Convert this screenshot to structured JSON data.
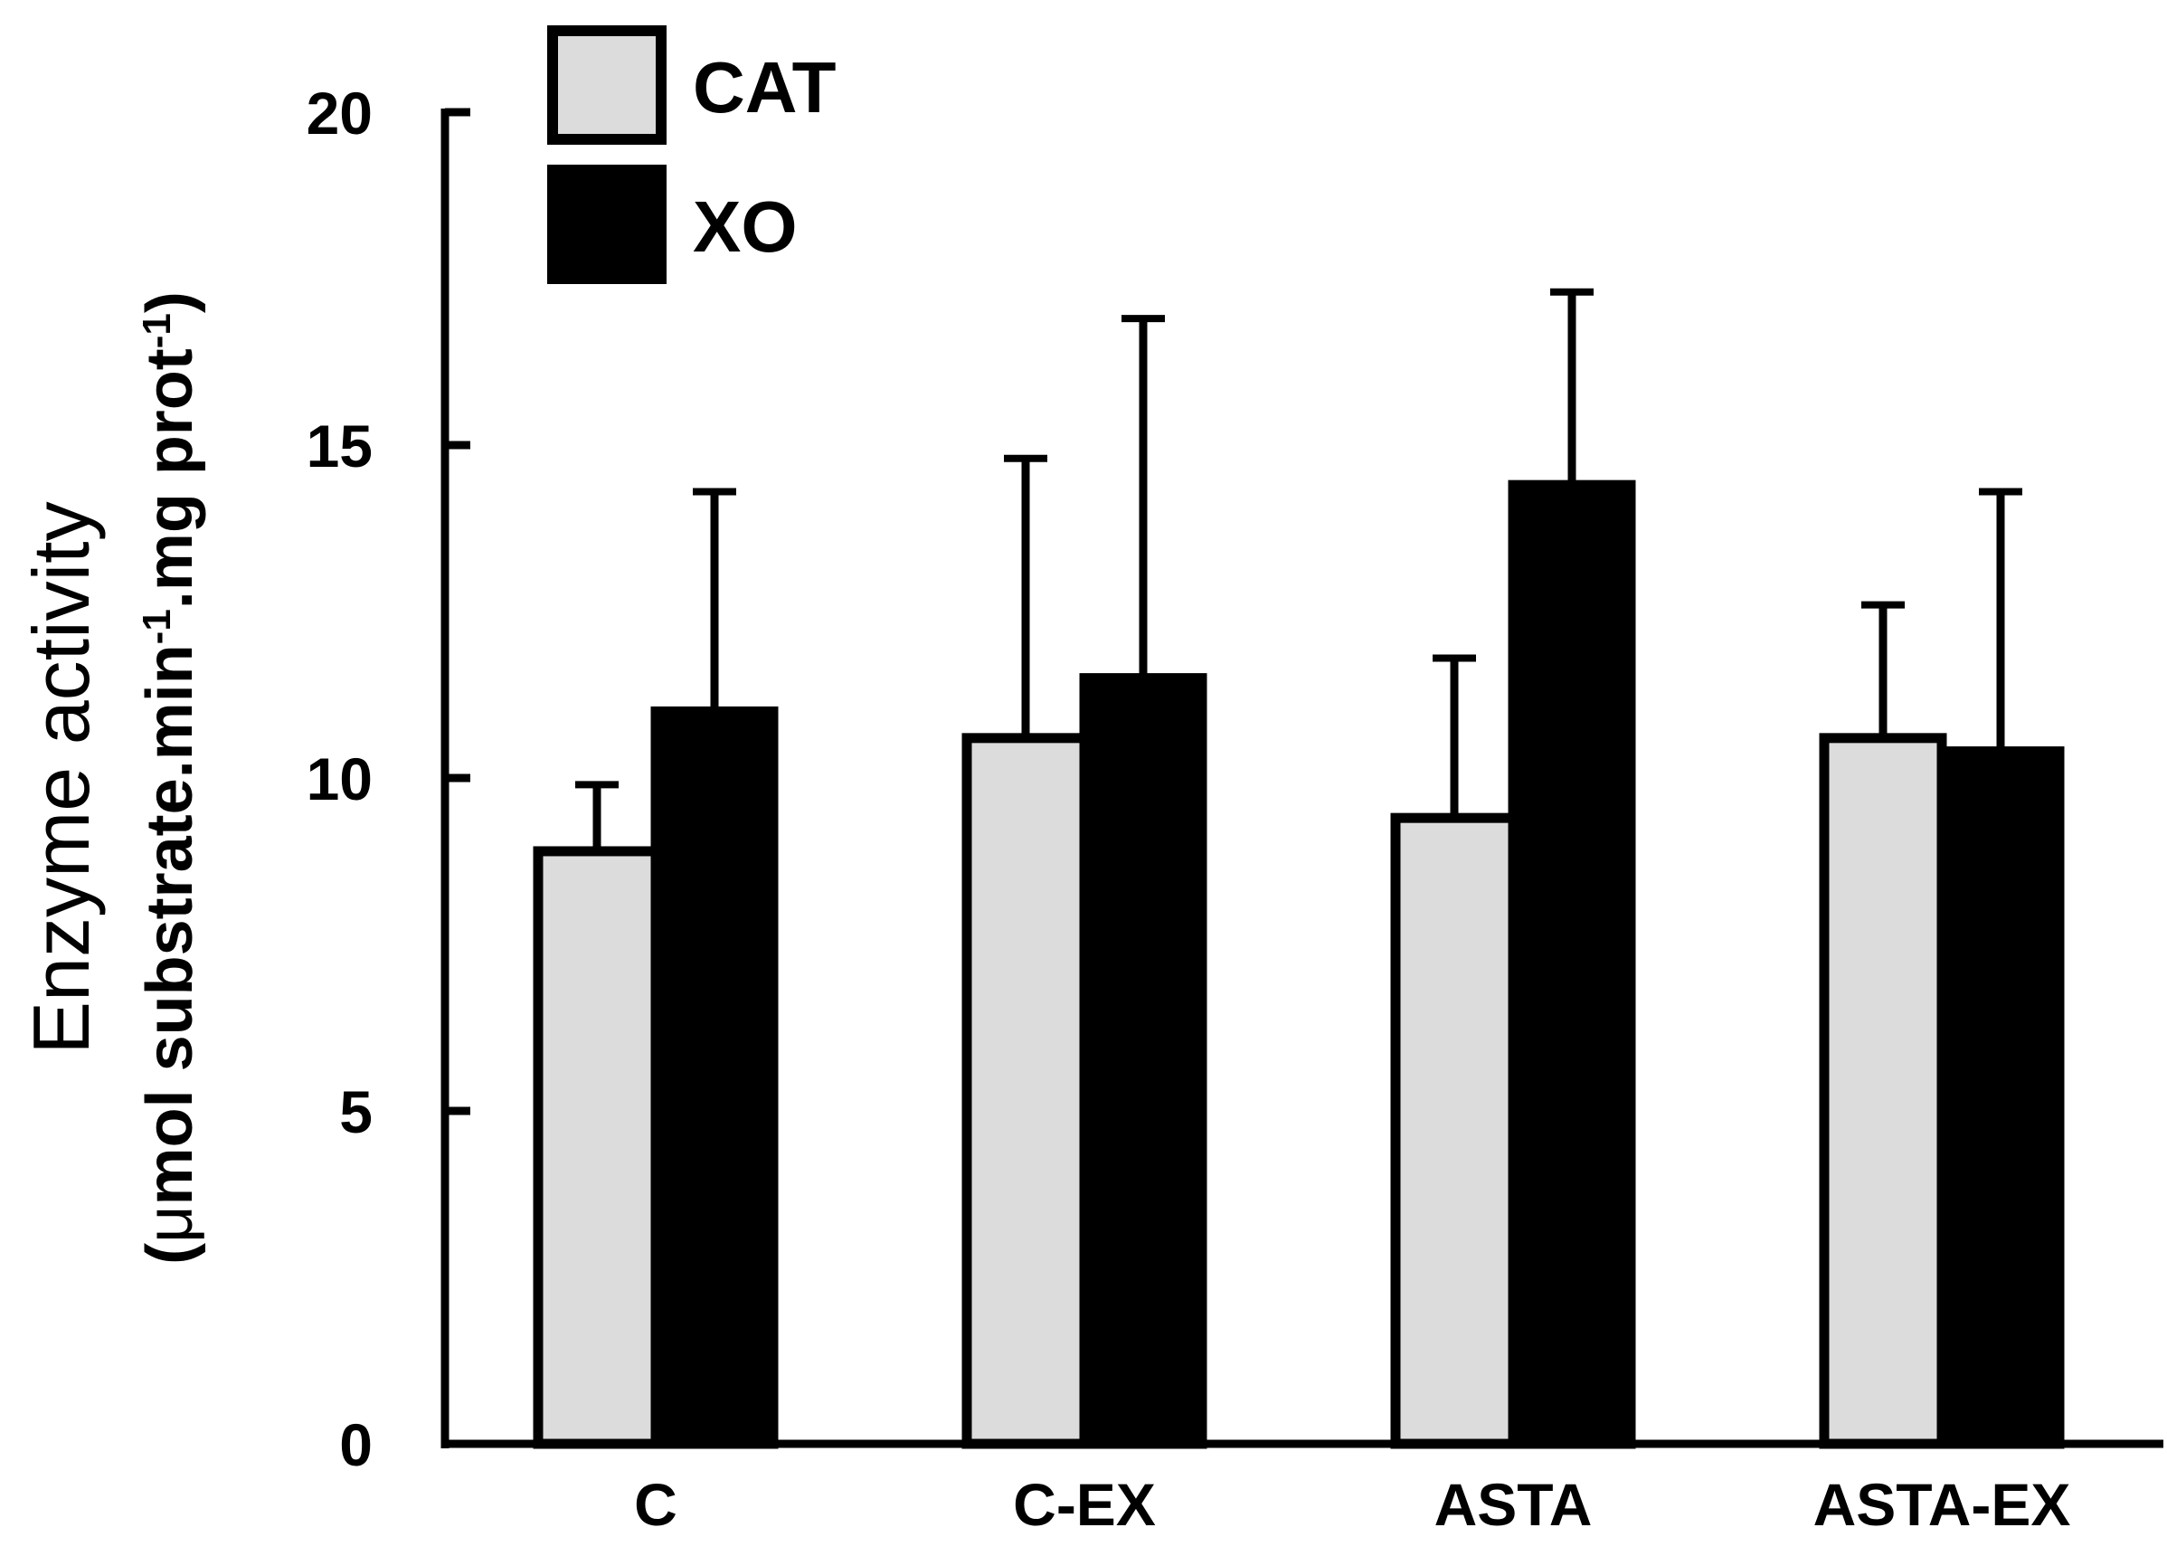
{
  "chart_data": {
    "type": "bar",
    "categories": [
      "C",
      "C-EX",
      "ASTA",
      "ASTA-EX"
    ],
    "series": [
      {
        "name": "CAT",
        "color": "#dcdcdc",
        "values": [
          8.9,
          10.6,
          9.4,
          10.6
        ],
        "errors": [
          1.0,
          4.2,
          2.4,
          2.0
        ]
      },
      {
        "name": "XO",
        "color": "#000000",
        "values": [
          11.0,
          11.5,
          14.4,
          10.4
        ],
        "errors": [
          3.3,
          5.4,
          2.9,
          3.9
        ]
      }
    ],
    "ylim": [
      0,
      20
    ],
    "yticks": [
      0,
      5,
      10,
      15,
      20
    ],
    "ylabel": "Enzyme activity",
    "ylabel_units": {
      "open": "(",
      "mu": "μ",
      "part1": "mol substrate.min",
      "sup1": "-1",
      "part2": ".mg prot",
      "sup2": "-1",
      "close": ")"
    },
    "xlabel": "",
    "title": "",
    "legend_position": "top-left"
  }
}
